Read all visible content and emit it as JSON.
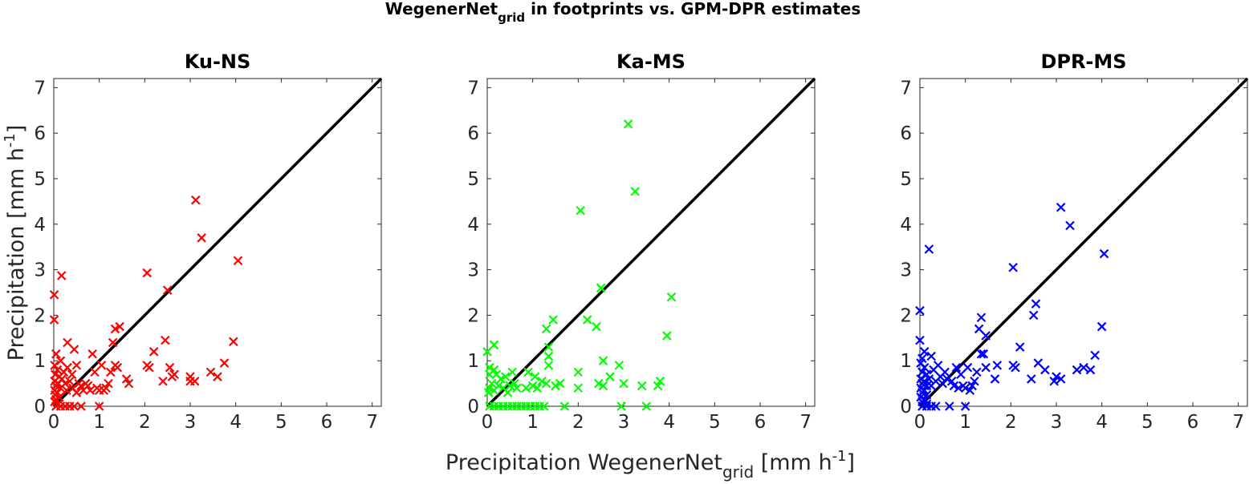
{
  "figure": {
    "title_main": "WegenerNet",
    "title_sub": "grid",
    "title_rest": " in footprints vs. GPM-DPR estimates",
    "xlabel_main": "Precipitation WegenerNet",
    "xlabel_sub": "grid",
    "xlabel_unit_pre": " [mm h",
    "xlabel_unit_sup": "-1",
    "xlabel_unit_post": "]",
    "ylabel_main": "Precipitation [mm h",
    "ylabel_sup": "-1",
    "ylabel_post": "]"
  },
  "chart_data": [
    {
      "type": "scatter",
      "title": "Ku-NS",
      "color": "#ff0000",
      "xlim": [
        0,
        7.2
      ],
      "ylim": [
        0,
        7.2
      ],
      "xticks": [
        0,
        1,
        2,
        3,
        4,
        5,
        6,
        7
      ],
      "yticks": [
        0,
        1,
        2,
        3,
        4,
        5,
        6,
        7
      ],
      "reference_line": [
        [
          0,
          0
        ],
        [
          7.2,
          7.2
        ]
      ],
      "points": [
        [
          0.01,
          2.45
        ],
        [
          0.01,
          1.9
        ],
        [
          0.17,
          2.87
        ],
        [
          0.05,
          1.15
        ],
        [
          0.15,
          1.0
        ],
        [
          0.02,
          0.9
        ],
        [
          0.08,
          0.8
        ],
        [
          0.03,
          0.7
        ],
        [
          0.12,
          0.65
        ],
        [
          0.02,
          0.55
        ],
        [
          0.1,
          0.5
        ],
        [
          0.05,
          0.45
        ],
        [
          0.15,
          0.4
        ],
        [
          0.02,
          0.35
        ],
        [
          0.08,
          0.3
        ],
        [
          0.03,
          0.25
        ],
        [
          0.12,
          0.2
        ],
        [
          0.05,
          0.15
        ],
        [
          0.02,
          0.1
        ],
        [
          0.1,
          0.05
        ],
        [
          0.05,
          0.0
        ],
        [
          0.15,
          0.0
        ],
        [
          0.25,
          0.0
        ],
        [
          0.35,
          0.0
        ],
        [
          0.45,
          0.0
        ],
        [
          0.18,
          0.6
        ],
        [
          0.22,
          0.75
        ],
        [
          0.25,
          0.5
        ],
        [
          0.28,
          0.35
        ],
        [
          0.3,
          0.85
        ],
        [
          0.3,
          1.4
        ],
        [
          0.35,
          0.55
        ],
        [
          0.4,
          0.7
        ],
        [
          0.42,
          0.4
        ],
        [
          0.45,
          1.25
        ],
        [
          0.5,
          0.9
        ],
        [
          0.5,
          0.3
        ],
        [
          0.55,
          0.5
        ],
        [
          0.6,
          0.45
        ],
        [
          0.6,
          0.0
        ],
        [
          0.65,
          0.35
        ],
        [
          0.7,
          0.5
        ],
        [
          0.75,
          0.45
        ],
        [
          0.8,
          0.35
        ],
        [
          0.85,
          1.15
        ],
        [
          0.9,
          0.75
        ],
        [
          0.95,
          0.4
        ],
        [
          1.0,
          0.0
        ],
        [
          1.0,
          0.35
        ],
        [
          1.05,
          0.9
        ],
        [
          1.1,
          0.35
        ],
        [
          1.15,
          0.4
        ],
        [
          1.2,
          0.5
        ],
        [
          1.25,
          0.75
        ],
        [
          1.3,
          1.4
        ],
        [
          1.35,
          0.9
        ],
        [
          1.35,
          1.7
        ],
        [
          1.45,
          1.75
        ],
        [
          1.4,
          0.85
        ],
        [
          1.6,
          0.6
        ],
        [
          1.65,
          0.5
        ],
        [
          2.05,
          0.9
        ],
        [
          2.05,
          2.93
        ],
        [
          2.1,
          0.85
        ],
        [
          2.2,
          1.2
        ],
        [
          2.4,
          0.55
        ],
        [
          2.45,
          1.45
        ],
        [
          2.5,
          2.55
        ],
        [
          2.55,
          0.85
        ],
        [
          2.6,
          0.65
        ],
        [
          2.65,
          0.7
        ],
        [
          3.0,
          0.65
        ],
        [
          3.0,
          0.55
        ],
        [
          3.1,
          0.55
        ],
        [
          3.12,
          4.53
        ],
        [
          3.25,
          3.7
        ],
        [
          3.45,
          0.75
        ],
        [
          3.6,
          0.65
        ],
        [
          3.75,
          0.95
        ],
        [
          3.95,
          1.42
        ],
        [
          4.05,
          3.2
        ]
      ]
    },
    {
      "type": "scatter",
      "title": "Ka-MS",
      "color": "#00ff00",
      "xlim": [
        0,
        7.2
      ],
      "ylim": [
        0,
        7.2
      ],
      "xticks": [
        0,
        1,
        2,
        3,
        4,
        5,
        6,
        7
      ],
      "yticks": [
        0,
        1,
        2,
        3,
        4,
        5,
        6,
        7
      ],
      "reference_line": [
        [
          0,
          0
        ],
        [
          7.2,
          7.2
        ]
      ],
      "points": [
        [
          0.0,
          1.2
        ],
        [
          0.15,
          1.35
        ],
        [
          0.05,
          0.85
        ],
        [
          0.15,
          0.8
        ],
        [
          0.05,
          0.7
        ],
        [
          0.1,
          0.5
        ],
        [
          0.05,
          0.4
        ],
        [
          0.15,
          0.35
        ],
        [
          0.03,
          0.3
        ],
        [
          0.2,
          0.7
        ],
        [
          0.25,
          0.45
        ],
        [
          0.3,
          0.6
        ],
        [
          0.35,
          0.4
        ],
        [
          0.4,
          0.65
        ],
        [
          0.45,
          0.3
        ],
        [
          0.5,
          0.45
        ],
        [
          0.55,
          0.75
        ],
        [
          0.6,
          0.5
        ],
        [
          0.65,
          0.4
        ],
        [
          0.05,
          0.0
        ],
        [
          0.15,
          0.0
        ],
        [
          0.25,
          0.0
        ],
        [
          0.35,
          0.0
        ],
        [
          0.45,
          0.0
        ],
        [
          0.55,
          0.0
        ],
        [
          0.65,
          0.0
        ],
        [
          0.75,
          0.0
        ],
        [
          0.85,
          0.0
        ],
        [
          0.95,
          0.0
        ],
        [
          1.05,
          0.0
        ],
        [
          1.15,
          0.0
        ],
        [
          1.25,
          0.0
        ],
        [
          0.85,
          0.4
        ],
        [
          0.9,
          0.75
        ],
        [
          1.0,
          0.45
        ],
        [
          1.05,
          0.65
        ],
        [
          1.1,
          0.4
        ],
        [
          1.2,
          0.55
        ],
        [
          1.3,
          0.5
        ],
        [
          1.3,
          1.7
        ],
        [
          1.35,
          1.3
        ],
        [
          1.35,
          1.1
        ],
        [
          1.35,
          0.9
        ],
        [
          1.45,
          1.9
        ],
        [
          1.5,
          0.45
        ],
        [
          1.6,
          0.5
        ],
        [
          1.7,
          0.0
        ],
        [
          2.0,
          0.75
        ],
        [
          2.0,
          0.4
        ],
        [
          2.05,
          4.3
        ],
        [
          2.2,
          1.9
        ],
        [
          2.4,
          1.75
        ],
        [
          2.45,
          0.5
        ],
        [
          2.5,
          2.6
        ],
        [
          2.55,
          0.45
        ],
        [
          2.55,
          1.0
        ],
        [
          2.7,
          0.65
        ],
        [
          2.9,
          0.9
        ],
        [
          2.95,
          0.0
        ],
        [
          3.0,
          0.5
        ],
        [
          3.1,
          6.2
        ],
        [
          3.25,
          4.72
        ],
        [
          3.4,
          0.45
        ],
        [
          3.5,
          0.0
        ],
        [
          3.75,
          0.45
        ],
        [
          3.8,
          0.55
        ],
        [
          3.95,
          1.55
        ],
        [
          4.05,
          2.4
        ]
      ]
    },
    {
      "type": "scatter",
      "title": "DPR-MS",
      "color": "#0000ff",
      "xlim": [
        0,
        7.2
      ],
      "ylim": [
        0,
        7.2
      ],
      "xticks": [
        0,
        1,
        2,
        3,
        4,
        5,
        6,
        7
      ],
      "yticks": [
        0,
        1,
        2,
        3,
        4,
        5,
        6,
        7
      ],
      "reference_line": [
        [
          0,
          0
        ],
        [
          7.2,
          7.2
        ]
      ],
      "points": [
        [
          0.0,
          2.1
        ],
        [
          0.2,
          3.45
        ],
        [
          0.0,
          1.45
        ],
        [
          0.1,
          1.2
        ],
        [
          0.05,
          1.05
        ],
        [
          0.25,
          1.1
        ],
        [
          0.02,
          0.95
        ],
        [
          0.1,
          0.85
        ],
        [
          0.05,
          0.75
        ],
        [
          0.15,
          0.7
        ],
        [
          0.02,
          0.6
        ],
        [
          0.1,
          0.55
        ],
        [
          0.05,
          0.5
        ],
        [
          0.15,
          0.45
        ],
        [
          0.02,
          0.4
        ],
        [
          0.1,
          0.35
        ],
        [
          0.05,
          0.3
        ],
        [
          0.15,
          0.25
        ],
        [
          0.02,
          0.2
        ],
        [
          0.1,
          0.15
        ],
        [
          0.05,
          0.1
        ],
        [
          0.15,
          0.05
        ],
        [
          0.05,
          0.0
        ],
        [
          0.15,
          0.0
        ],
        [
          0.25,
          0.0
        ],
        [
          0.35,
          0.0
        ],
        [
          0.2,
          0.6
        ],
        [
          0.25,
          0.45
        ],
        [
          0.3,
          0.8
        ],
        [
          0.35,
          0.55
        ],
        [
          0.4,
          0.9
        ],
        [
          0.45,
          0.65
        ],
        [
          0.5,
          0.5
        ],
        [
          0.55,
          0.75
        ],
        [
          0.6,
          0.6
        ],
        [
          0.65,
          0.0
        ],
        [
          0.7,
          0.55
        ],
        [
          0.75,
          0.45
        ],
        [
          0.8,
          0.85
        ],
        [
          0.85,
          0.4
        ],
        [
          0.9,
          0.7
        ],
        [
          0.95,
          0.45
        ],
        [
          1.0,
          0.0
        ],
        [
          1.0,
          0.4
        ],
        [
          1.05,
          0.85
        ],
        [
          1.1,
          0.35
        ],
        [
          1.15,
          0.45
        ],
        [
          1.2,
          0.55
        ],
        [
          1.25,
          0.75
        ],
        [
          1.3,
          1.7
        ],
        [
          1.35,
          1.95
        ],
        [
          1.35,
          1.15
        ],
        [
          1.4,
          1.15
        ],
        [
          1.45,
          0.85
        ],
        [
          1.45,
          1.55
        ],
        [
          1.65,
          0.6
        ],
        [
          1.7,
          0.9
        ],
        [
          2.05,
          0.9
        ],
        [
          2.05,
          3.05
        ],
        [
          2.1,
          0.85
        ],
        [
          2.2,
          1.3
        ],
        [
          2.45,
          0.6
        ],
        [
          2.5,
          2.0
        ],
        [
          2.55,
          2.25
        ],
        [
          2.6,
          0.95
        ],
        [
          2.75,
          0.8
        ],
        [
          2.95,
          0.55
        ],
        [
          3.0,
          0.65
        ],
        [
          3.1,
          4.37
        ],
        [
          3.1,
          0.6
        ],
        [
          3.3,
          3.97
        ],
        [
          3.45,
          0.8
        ],
        [
          3.6,
          0.85
        ],
        [
          3.75,
          0.8
        ],
        [
          3.85,
          1.12
        ],
        [
          4.0,
          1.75
        ],
        [
          4.05,
          3.35
        ]
      ]
    }
  ]
}
